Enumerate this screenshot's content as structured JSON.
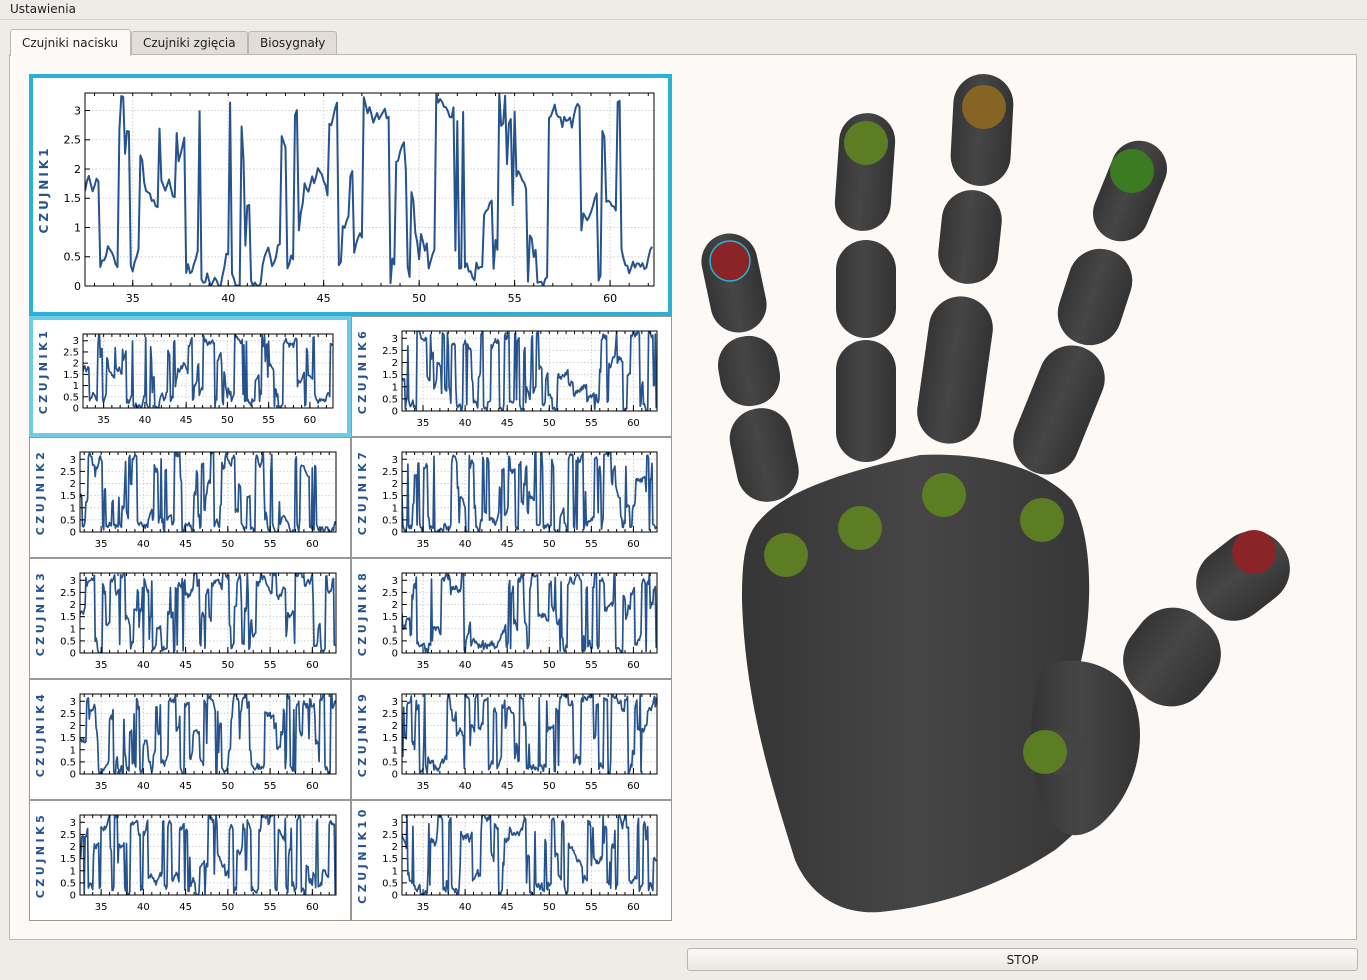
{
  "menubar": {
    "settings_label": "Ustawienia"
  },
  "tabs": [
    {
      "label": "Czujniki nacisku",
      "active": true
    },
    {
      "label": "Czujniki zgięcia",
      "active": false
    },
    {
      "label": "Biosygnały",
      "active": false
    }
  ],
  "stop_button": {
    "label": "STOP"
  },
  "colors": {
    "series_line": "#26538e",
    "axis_label": "#26538e",
    "selection_border": "#2ab1d6",
    "hand_fill": "#3f3f3f",
    "indicator_green": "#5c7d24",
    "indicator_bright_green": "#3d7b23",
    "indicator_red": "#8a2428",
    "indicator_orange": "#866524",
    "indicator_ring": "#2ab1d6"
  },
  "chart_data": [
    {
      "type": "line",
      "role": "main",
      "ylabel": "CZUJNIK1",
      "xlim": [
        32.5,
        62.3
      ],
      "ylim": [
        0,
        3.3
      ],
      "xticks": [
        35,
        40,
        45,
        50,
        55,
        60
      ],
      "yticks": [
        0,
        0.5,
        1,
        1.5,
        2,
        2.5,
        3
      ],
      "grid": true,
      "seed": 1
    },
    {
      "type": "line",
      "ylabel": "CZUJNIK1",
      "xlim": [
        32.5,
        62.8
      ],
      "ylim": [
        0,
        3.3
      ],
      "xticks": [
        35,
        40,
        45,
        50,
        55,
        60
      ],
      "yticks": [
        0,
        0.5,
        1,
        1.5,
        2,
        2.5,
        3
      ],
      "grid": true,
      "seed": 1
    },
    {
      "type": "line",
      "ylabel": "CZUJNIK2",
      "xlim": [
        32.5,
        62.8
      ],
      "ylim": [
        0,
        3.3
      ],
      "xticks": [
        35,
        40,
        45,
        50,
        55,
        60
      ],
      "yticks": [
        0,
        0.5,
        1,
        1.5,
        2,
        2.5,
        3
      ],
      "grid": true,
      "seed": 2
    },
    {
      "type": "line",
      "ylabel": "CZUJNIK3",
      "xlim": [
        32.5,
        62.8
      ],
      "ylim": [
        0,
        3.3
      ],
      "xticks": [
        35,
        40,
        45,
        50,
        55,
        60
      ],
      "yticks": [
        0,
        0.5,
        1,
        1.5,
        2,
        2.5,
        3
      ],
      "grid": true,
      "seed": 3
    },
    {
      "type": "line",
      "ylabel": "CZUJNIK4",
      "xlim": [
        32.5,
        62.8
      ],
      "ylim": [
        0,
        3.3
      ],
      "xticks": [
        35,
        40,
        45,
        50,
        55,
        60
      ],
      "yticks": [
        0,
        0.5,
        1,
        1.5,
        2,
        2.5,
        3
      ],
      "grid": true,
      "seed": 4
    },
    {
      "type": "line",
      "ylabel": "CZUJNIK5",
      "xlim": [
        32.5,
        62.8
      ],
      "ylim": [
        0,
        3.3
      ],
      "xticks": [
        35,
        40,
        45,
        50,
        55,
        60
      ],
      "yticks": [
        0,
        0.5,
        1,
        1.5,
        2,
        2.5,
        3
      ],
      "grid": true,
      "seed": 5
    },
    {
      "type": "line",
      "ylabel": "CZUJNIK6",
      "xlim": [
        32.5,
        62.8
      ],
      "ylim": [
        0,
        3.3
      ],
      "xticks": [
        35,
        40,
        45,
        50,
        55,
        60
      ],
      "yticks": [
        0,
        0.5,
        1,
        1.5,
        2,
        2.5,
        3
      ],
      "grid": true,
      "seed": 6
    },
    {
      "type": "line",
      "ylabel": "CZUJNIK7",
      "xlim": [
        32.5,
        62.8
      ],
      "ylim": [
        0,
        3.3
      ],
      "xticks": [
        35,
        40,
        45,
        50,
        55,
        60
      ],
      "yticks": [
        0,
        0.5,
        1,
        1.5,
        2,
        2.5,
        3
      ],
      "grid": true,
      "seed": 7
    },
    {
      "type": "line",
      "ylabel": "CZUJNIK8",
      "xlim": [
        32.5,
        62.8
      ],
      "ylim": [
        0,
        3.3
      ],
      "xticks": [
        35,
        40,
        45,
        50,
        55,
        60
      ],
      "yticks": [
        0,
        0.5,
        1,
        1.5,
        2,
        2.5,
        3
      ],
      "grid": true,
      "seed": 8
    },
    {
      "type": "line",
      "ylabel": "CZUJNIK9",
      "xlim": [
        32.5,
        62.8
      ],
      "ylim": [
        0,
        3.3
      ],
      "xticks": [
        35,
        40,
        45,
        50,
        55,
        60
      ],
      "yticks": [
        0,
        0.5,
        1,
        1.5,
        2,
        2.5,
        3
      ],
      "grid": true,
      "seed": 9
    },
    {
      "type": "line",
      "ylabel": "CZUJNIK10",
      "xlim": [
        32.5,
        62.8
      ],
      "ylim": [
        0,
        3.3
      ],
      "xticks": [
        35,
        40,
        45,
        50,
        55,
        60
      ],
      "yticks": [
        0,
        0.5,
        1,
        1.5,
        2,
        2.5,
        3
      ],
      "grid": true,
      "seed": 10
    }
  ],
  "hand": {
    "indicators": [
      {
        "name": "little-finger-tip-indicator",
        "color": "red",
        "highlighted": true
      },
      {
        "name": "ring-finger-tip-indicator",
        "color": "green",
        "highlighted": false
      },
      {
        "name": "middle-finger-tip-indicator",
        "color": "orange",
        "highlighted": false
      },
      {
        "name": "index-finger-tip-indicator",
        "color": "bright-green",
        "highlighted": false
      },
      {
        "name": "thumb-tip-indicator",
        "color": "red",
        "highlighted": false
      },
      {
        "name": "palm-little-base-indicator",
        "color": "green",
        "highlighted": false
      },
      {
        "name": "palm-ring-base-indicator",
        "color": "green",
        "highlighted": false
      },
      {
        "name": "palm-middle-base-indicator",
        "color": "green",
        "highlighted": false
      },
      {
        "name": "palm-index-base-indicator",
        "color": "green",
        "highlighted": false
      },
      {
        "name": "palm-thumb-base-indicator",
        "color": "green",
        "highlighted": false
      }
    ]
  }
}
